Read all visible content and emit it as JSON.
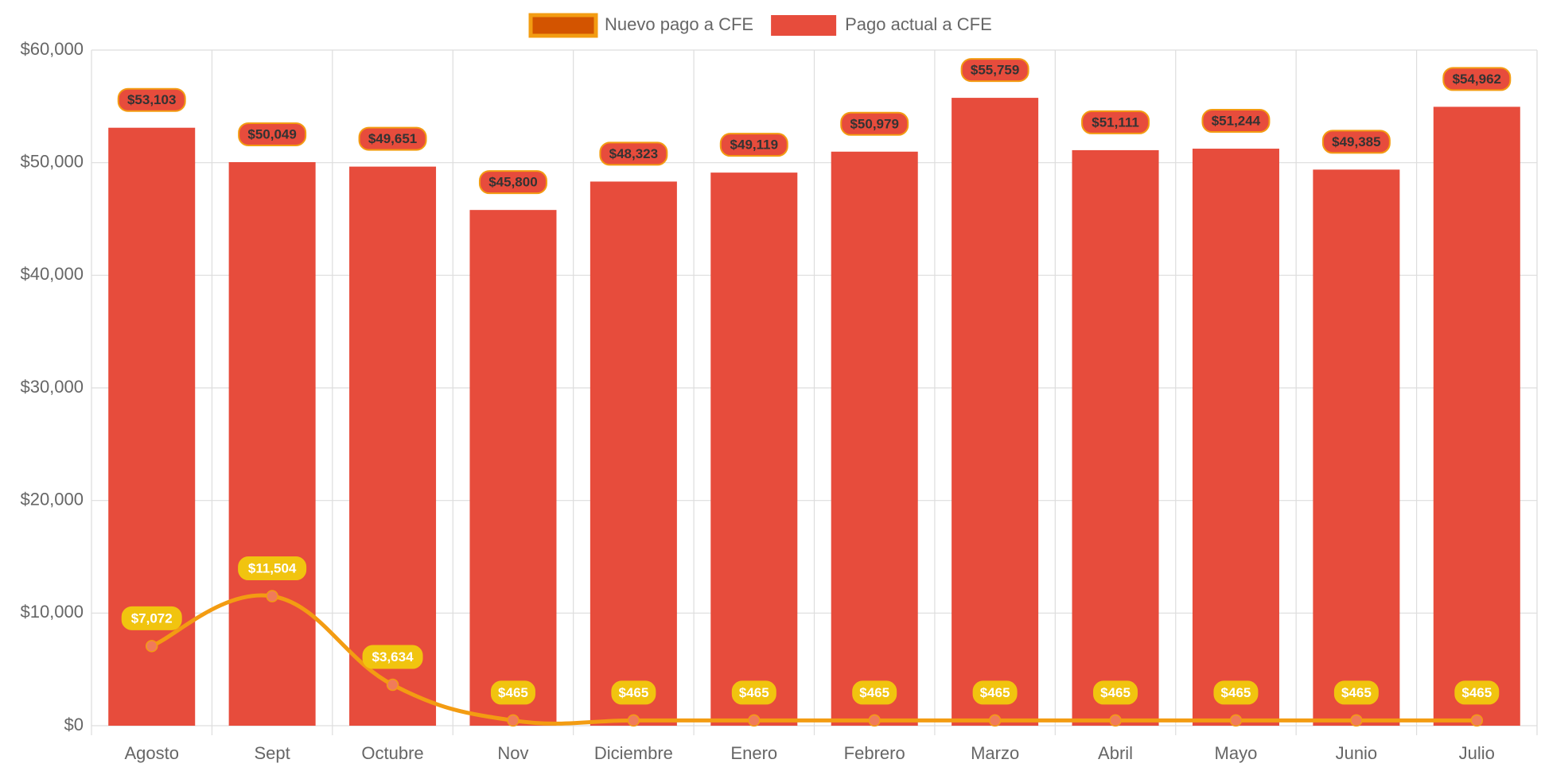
{
  "chart_data": {
    "type": "bar",
    "categories": [
      "Agosto",
      "Sept",
      "Octubre",
      "Nov",
      "Diciembre",
      "Enero",
      "Febrero",
      "Marzo",
      "Abril",
      "Mayo",
      "Junio",
      "Julio"
    ],
    "series": [
      {
        "name": "Nuevo pago a CFE",
        "type": "line",
        "color": "#f39c12",
        "values": [
          7072,
          11504,
          3634,
          465,
          465,
          465,
          465,
          465,
          465,
          465,
          465,
          465
        ],
        "value_labels": [
          "$7,072",
          "$11,504",
          "$3,634",
          "$465",
          "$465",
          "$465",
          "$465",
          "$465",
          "$465",
          "$465",
          "$465",
          "$465"
        ]
      },
      {
        "name": "Pago actual a CFE",
        "type": "bar",
        "color": "#e74c3c",
        "values": [
          53103,
          50049,
          49651,
          45800,
          48323,
          49119,
          50979,
          55759,
          51111,
          51244,
          49385,
          54962
        ],
        "value_labels": [
          "$53,103",
          "$50,049",
          "$49,651",
          "$45,800",
          "$48,323",
          "$49,119",
          "$50,979",
          "$55,759",
          "$51,111",
          "$51,244",
          "$49,385",
          "$54,962"
        ]
      }
    ],
    "ylim": [
      0,
      60000
    ],
    "yticks": [
      {
        "value": 0,
        "label": "$0"
      },
      {
        "value": 10000,
        "label": "$10,000"
      },
      {
        "value": 20000,
        "label": "$20,000"
      },
      {
        "value": 30000,
        "label": "$30,000"
      },
      {
        "value": 40000,
        "label": "$40,000"
      },
      {
        "value": 50000,
        "label": "$50,000"
      },
      {
        "value": 60000,
        "label": "$60,000"
      }
    ],
    "grid": true,
    "legend": "top"
  }
}
